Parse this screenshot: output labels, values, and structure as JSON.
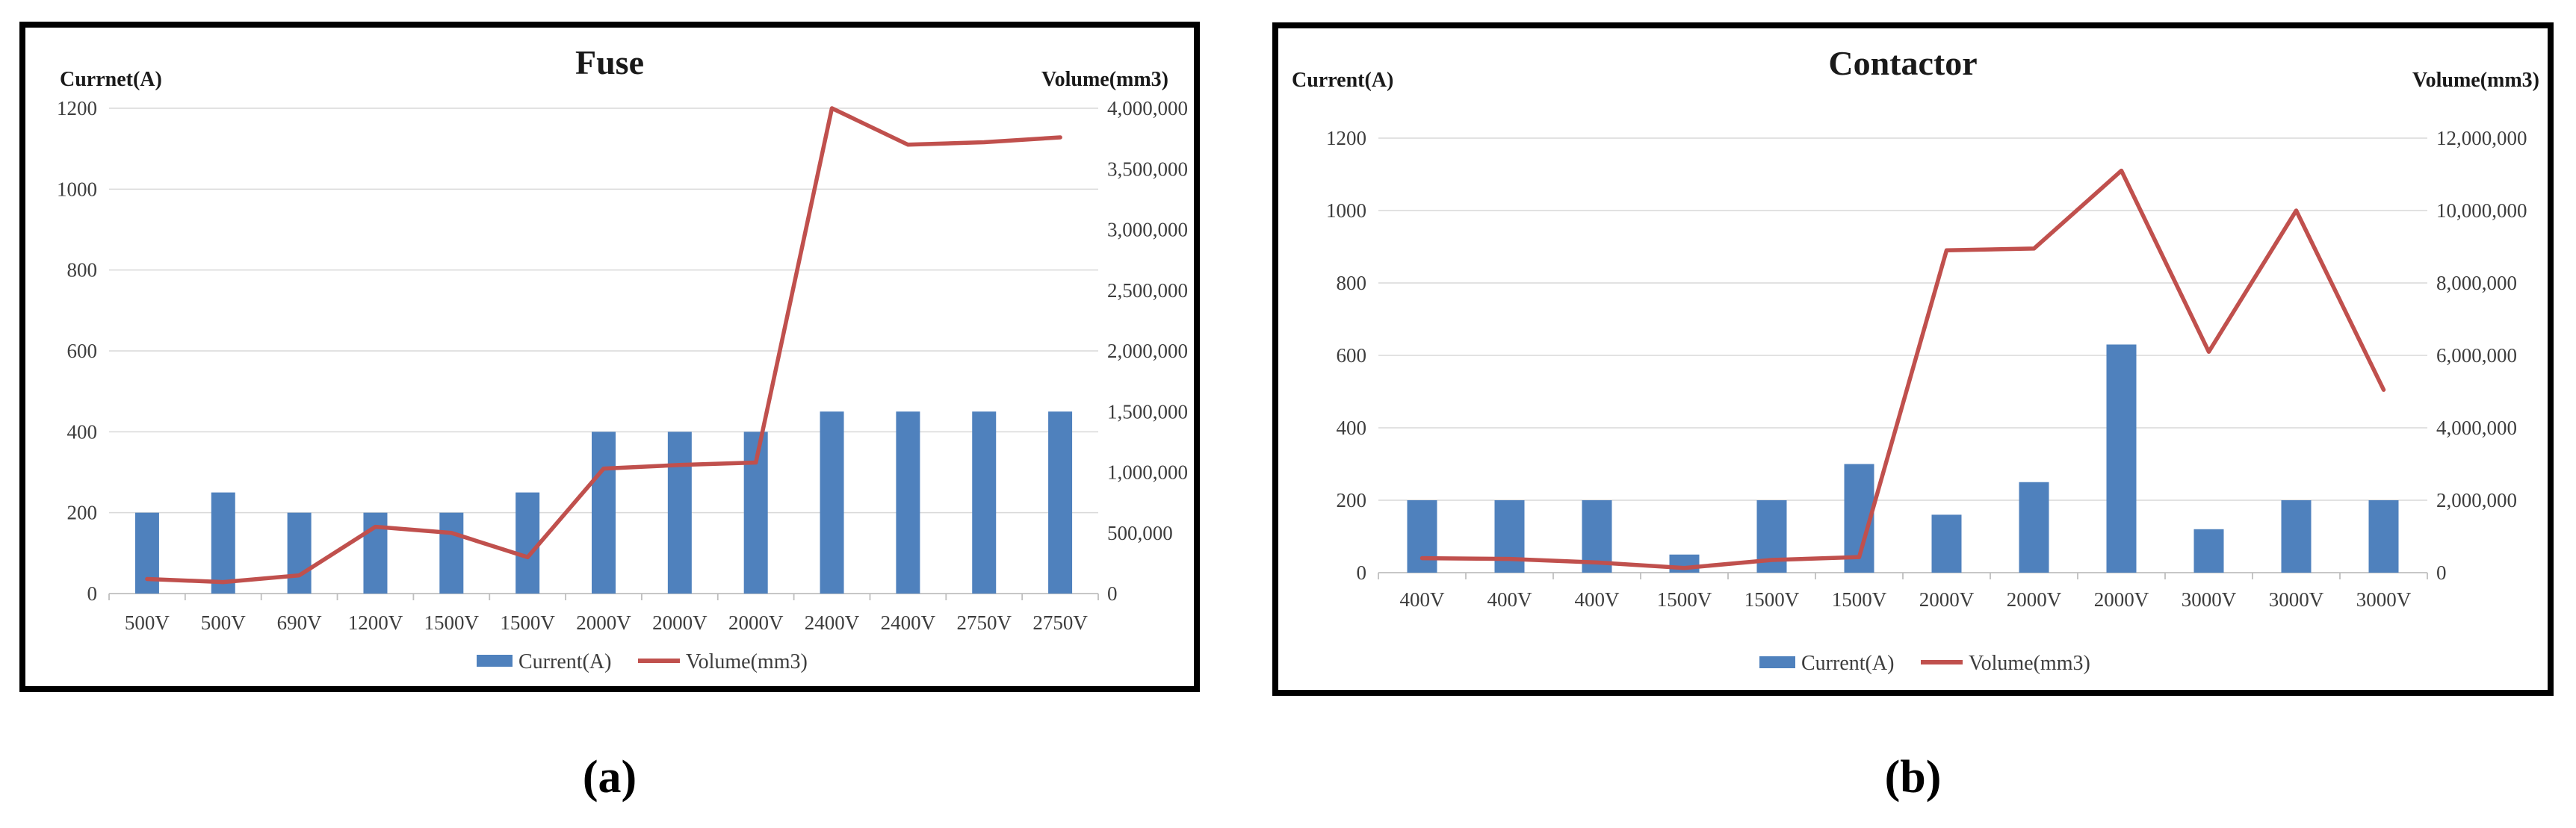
{
  "figure": {
    "caption_a": "(a)",
    "caption_b": "(b)"
  },
  "colors": {
    "bar_blue": "#4F81BD",
    "line_red": "#C0504D",
    "gridline": "#D9D9D9",
    "axis_line": "#BFBFBF",
    "tick_text": "#3d3d3d",
    "title_text": "#1a1a1a",
    "panel_border": "#000000"
  },
  "chart_data": [
    {
      "type": "bar",
      "combo": "bar+line",
      "title": "Fuse",
      "left_axis_title": "Currnet(A)",
      "right_axis_title": "Volume(mm3)",
      "categories": [
        "500V",
        "500V",
        "690V",
        "1200V",
        "1500V",
        "1500V",
        "2000V",
        "2000V",
        "2000V",
        "2400V",
        "2400V",
        "2750V",
        "2750V"
      ],
      "series": [
        {
          "name": "Current(A)",
          "type": "bar",
          "axis": "left",
          "values": [
            200,
            250,
            200,
            200,
            200,
            250,
            400,
            400,
            400,
            450,
            450,
            450,
            450
          ]
        },
        {
          "name": "Volume(mm3)",
          "type": "line",
          "axis": "right",
          "values": [
            120000,
            95000,
            150000,
            550000,
            500000,
            300000,
            1030000,
            1060000,
            1080000,
            4000000,
            3700000,
            3720000,
            3760000
          ]
        }
      ],
      "left_axis": {
        "min": 0,
        "max": 1200,
        "tick_labels": [
          "0",
          "200",
          "400",
          "600",
          "800",
          "1000",
          "1200"
        ]
      },
      "right_axis": {
        "min": 0,
        "max": 4000000,
        "tick_labels": [
          "0",
          "500,000",
          "1,000,000",
          "1,500,000",
          "2,000,000",
          "2,500,000",
          "3,000,000",
          "3,500,000",
          "4,000,000"
        ]
      },
      "legend": [
        "Current(A)",
        "Volume(mm3)"
      ],
      "grid": "horizontal"
    },
    {
      "type": "bar",
      "combo": "bar+line",
      "title": "Contactor",
      "left_axis_title": "Current(A)",
      "right_axis_title": "Volume(mm3)",
      "categories": [
        "400V",
        "400V",
        "400V",
        "1500V",
        "1500V",
        "1500V",
        "2000V",
        "2000V",
        "2000V",
        "3000V",
        "3000V",
        "3000V"
      ],
      "series": [
        {
          "name": "Current(A)",
          "type": "bar",
          "axis": "left",
          "values": [
            200,
            200,
            200,
            50,
            200,
            300,
            160,
            250,
            630,
            120,
            200,
            200
          ]
        },
        {
          "name": "Volume(mm3)",
          "type": "line",
          "axis": "right",
          "values": [
            400000,
            380000,
            280000,
            130000,
            350000,
            430000,
            8900000,
            8950000,
            11100000,
            6100000,
            10000000,
            5050000
          ]
        }
      ],
      "left_axis": {
        "min": 0,
        "max": 1200,
        "tick_labels": [
          "0",
          "200",
          "400",
          "600",
          "800",
          "1000",
          "1200"
        ]
      },
      "right_axis": {
        "min": 0,
        "max": 12000000,
        "tick_labels": [
          "0",
          "2,000,000",
          "4,000,000",
          "6,000,000",
          "8,000,000",
          "10,000,000",
          "12,000,000"
        ]
      },
      "legend": [
        "Current(A)",
        "Volume(mm3)"
      ],
      "grid": "horizontal"
    }
  ]
}
